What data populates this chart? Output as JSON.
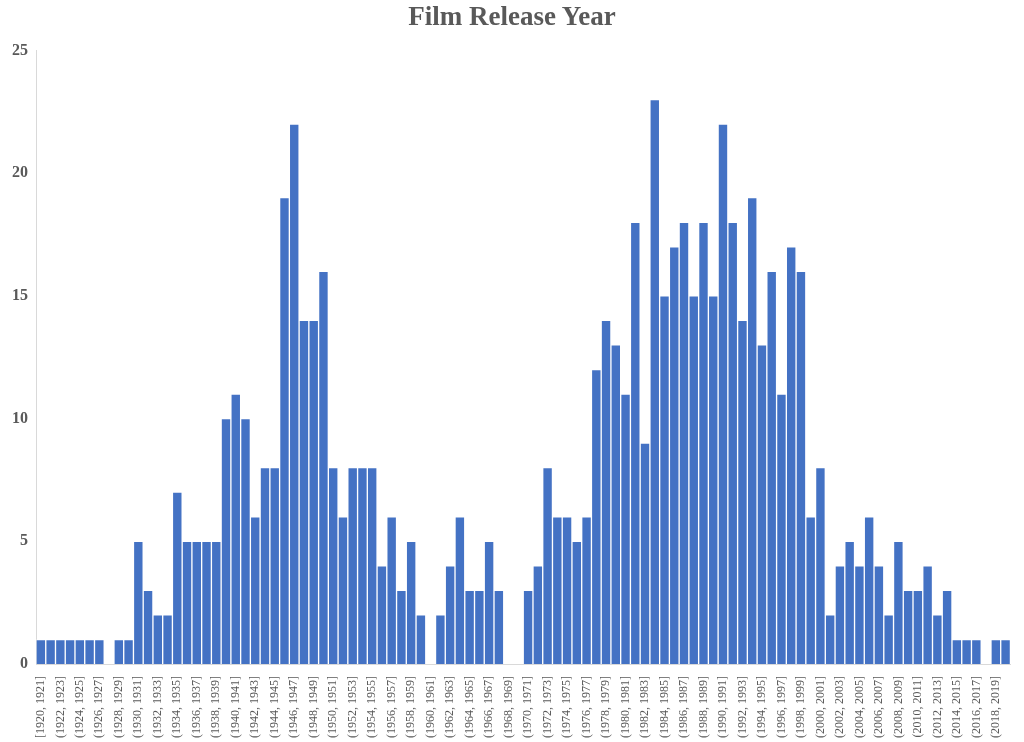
{
  "chart_data": {
    "type": "bar",
    "title": "Film Release Year",
    "categories": [
      "[1920, 1921]",
      null,
      "(1922, 1923]",
      null,
      "(1924, 1925]",
      null,
      "(1926, 1927]",
      null,
      "(1928, 1929]",
      null,
      "(1930, 1931]",
      null,
      "(1932, 1933]",
      null,
      "(1934, 1935]",
      null,
      "(1936, 1937]",
      null,
      "(1938, 1939]",
      null,
      "(1940, 1941]",
      null,
      "(1942, 1943]",
      null,
      "(1944, 1945]",
      null,
      "(1946, 1947]",
      null,
      "(1948, 1949]",
      null,
      "(1950, 1951]",
      null,
      "(1952, 1953]",
      null,
      "(1954, 1955]",
      null,
      "(1956, 1957]",
      null,
      "(1958, 1959]",
      null,
      "(1960, 1961]",
      null,
      "(1962, 1963]",
      null,
      "(1964, 1965]",
      null,
      "(1966, 1967]",
      null,
      "(1968, 1969]",
      null,
      "(1970, 1971]",
      null,
      "(1972, 1973]",
      null,
      "(1974, 1975]",
      null,
      "(1976, 1977]",
      null,
      "(1978, 1979]",
      null,
      "(1980, 1981]",
      null,
      "(1982, 1983]",
      null,
      "(1984, 1985]",
      null,
      "(1986, 1987]",
      null,
      "(1988, 1989]",
      null,
      "(1990, 1991]",
      null,
      "(1992, 1993]",
      null,
      "(1994, 1995]",
      null,
      "(1996, 1997]",
      null,
      "(1998, 1999]",
      null,
      "(2000, 2001]",
      null,
      "(2002, 2003]",
      null,
      "(2004, 2005]",
      null,
      "(2006, 2007]",
      null,
      "(2008, 2009]",
      null,
      "(2010, 2011]",
      null,
      "(2012, 2013]",
      null,
      "(2014, 2015]",
      null,
      "(2016, 2017]",
      null,
      "(2018, 2019]",
      null
    ],
    "values": [
      1,
      1,
      1,
      1,
      1,
      1,
      1,
      0,
      1,
      1,
      5,
      3,
      2,
      2,
      7,
      5,
      5,
      5,
      5,
      10,
      11,
      10,
      6,
      8,
      8,
      19,
      22,
      14,
      14,
      16,
      8,
      6,
      8,
      8,
      8,
      4,
      6,
      3,
      5,
      2,
      0,
      2,
      4,
      6,
      3,
      3,
      5,
      3,
      0,
      0,
      3,
      4,
      8,
      6,
      6,
      5,
      6,
      12,
      14,
      13,
      11,
      18,
      9,
      23,
      15,
      17,
      18,
      15,
      18,
      15,
      22,
      18,
      14,
      19,
      13,
      16,
      11,
      17,
      16,
      6,
      8,
      2,
      4,
      5,
      4,
      6,
      4,
      2,
      5,
      3,
      3,
      4,
      2,
      3,
      1,
      1,
      1,
      0,
      1,
      1
    ],
    "color": "#4472c4",
    "ylim": [
      0,
      25
    ],
    "yticks": [
      0,
      5,
      10,
      15,
      20,
      25
    ]
  }
}
